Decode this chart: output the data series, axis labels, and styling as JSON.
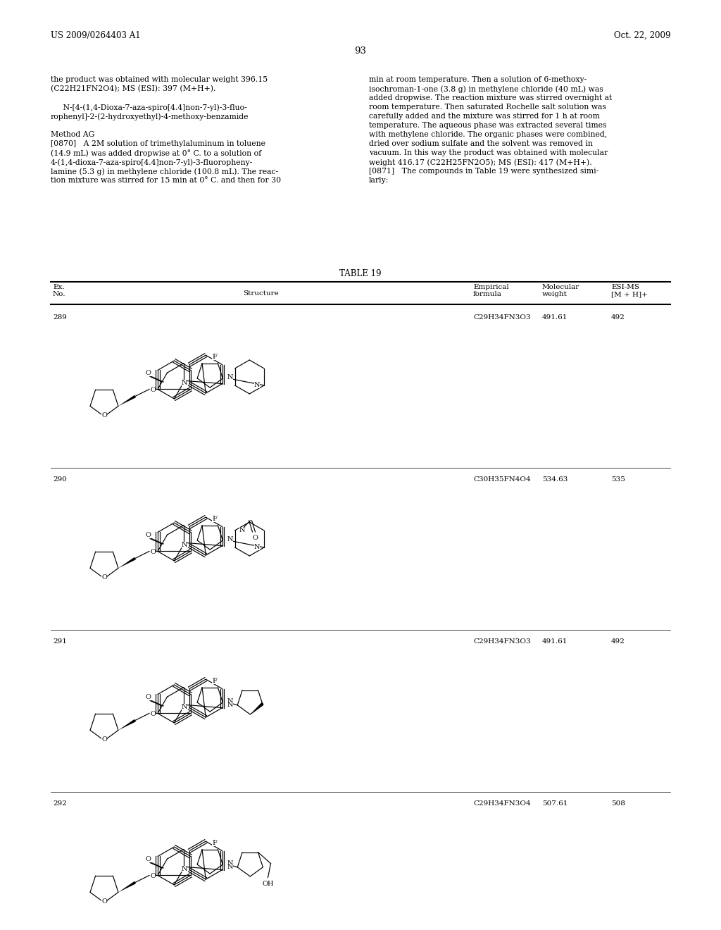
{
  "page_header_left": "US 2009/0264403 A1",
  "page_header_right": "Oct. 22, 2009",
  "page_number": "93",
  "left_column_text": [
    "the product was obtained with molecular weight 396.15",
    "(C22H21FN2O4); MS (ESI): 397 (M+H+).",
    "",
    "     N-[4-(1,4-Dioxa-7-aza-spiro[4.4]non-7-yl)-3-fluo-",
    "rophenyl]-2-(2-hydroxyethyl)-4-methoxy-benzamide",
    "",
    "Method AG",
    "[0870]   A 2M solution of trimethylaluminum in toluene",
    "(14.9 mL) was added dropwise at 0° C. to a solution of",
    "4-(1,4-dioxa-7-aza-spiro[4.4]non-7-yl)-3-fluoropheny-",
    "lamine (5.3 g) in methylene chloride (100.8 mL). The reac-",
    "tion mixture was stirred for 15 min at 0° C. and then for 30"
  ],
  "right_column_text": [
    "min at room temperature. Then a solution of 6-methoxy-",
    "isochroman-1-one (3.8 g) in methylene chloride (40 mL) was",
    "added dropwise. The reaction mixture was stirred overnight at",
    "room temperature. Then saturated Rochelle salt solution was",
    "carefully added and the mixture was stirred for 1 h at room",
    "temperature. The aqueous phase was extracted several times",
    "with methylene chloride. The organic phases were combined,",
    "dried over sodium sulfate and the solvent was removed in",
    "vacuum. In this way the product was obtained with molecular",
    "weight 416.17 (C22H25FN2O5); MS (ESI): 417 (M+H+).",
    "[0871]   The compounds in Table 19 were synthesized simi-",
    "larly:"
  ],
  "table_title": "TABLE 19",
  "compounds": [
    {
      "ex_no": "289",
      "empirical": "C29H34FN3O3",
      "mol_weight": "491.61",
      "esi_ms": "492"
    },
    {
      "ex_no": "290",
      "empirical": "C30H35FN4O4",
      "mol_weight": "534.63",
      "esi_ms": "535"
    },
    {
      "ex_no": "291",
      "empirical": "C29H34FN3O3",
      "mol_weight": "491.61",
      "esi_ms": "492"
    },
    {
      "ex_no": "292",
      "empirical": "C29H34FN3O4",
      "mol_weight": "507.61",
      "esi_ms": "508"
    }
  ],
  "bg_color": "#ffffff",
  "text_color": "#000000"
}
